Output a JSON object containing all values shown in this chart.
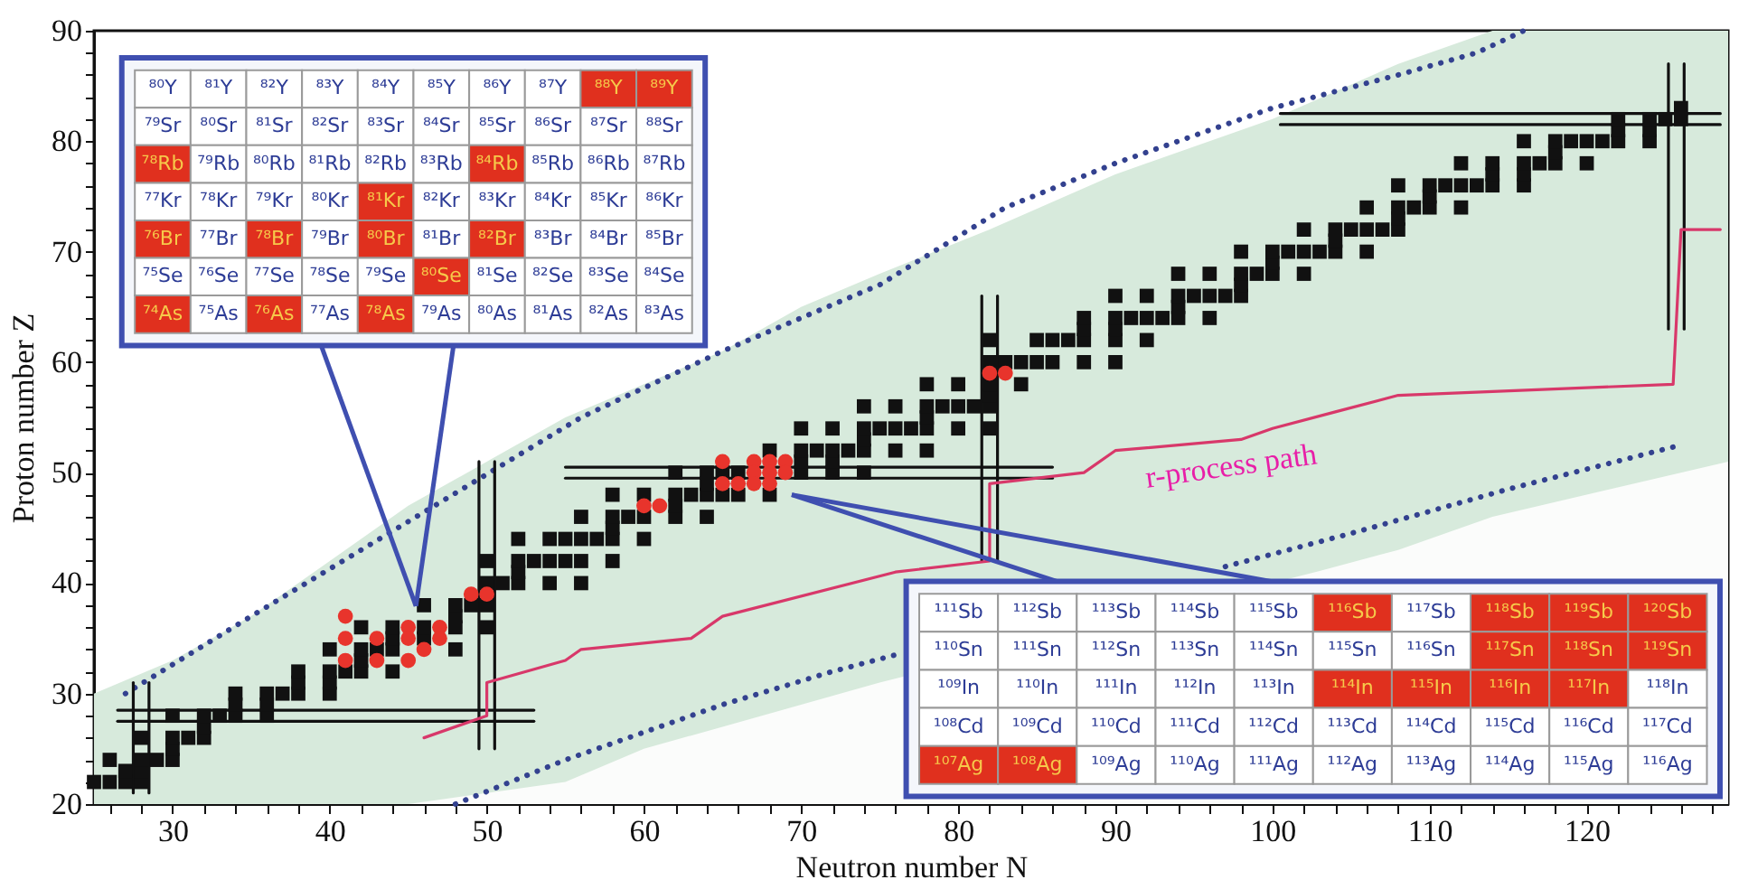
{
  "chart_data": [
    {
      "type": "scatter",
      "xlabel": "Neutron number N",
      "ylabel": "Proton number Z",
      "xlim": [
        25,
        129
      ],
      "ylim": [
        20,
        90
      ],
      "grid": false,
      "xticks": [
        {
          "value": 26,
          "label": null
        },
        {
          "value": 28,
          "label": null
        },
        30,
        {
          "value": 32,
          "label": null
        },
        {
          "value": 34,
          "label": null
        },
        {
          "value": 36,
          "label": null
        },
        {
          "value": 38,
          "label": null
        },
        40,
        {
          "value": 42,
          "label": null
        },
        {
          "value": 44,
          "label": null
        },
        {
          "value": 46,
          "label": null
        },
        {
          "value": 48,
          "label": null
        },
        50,
        {
          "value": 52,
          "label": null
        },
        {
          "value": 54,
          "label": null
        },
        {
          "value": 56,
          "label": null
        },
        {
          "value": 58,
          "label": null
        },
        60,
        {
          "value": 62,
          "label": null
        },
        {
          "value": 64,
          "label": null
        },
        {
          "value": 66,
          "label": null
        },
        {
          "value": 68,
          "label": null
        },
        70,
        {
          "value": 72,
          "label": null
        },
        {
          "value": 74,
          "label": null
        },
        {
          "value": 76,
          "label": null
        },
        {
          "value": 78,
          "label": null
        },
        80,
        {
          "value": 82,
          "label": null
        },
        {
          "value": 84,
          "label": null
        },
        {
          "value": 86,
          "label": null
        },
        {
          "value": 88,
          "label": null
        },
        90,
        {
          "value": 92,
          "label": null
        },
        {
          "value": 94,
          "label": null
        },
        {
          "value": 96,
          "label": null
        },
        {
          "value": 98,
          "label": null
        },
        100,
        {
          "value": 102,
          "label": null
        },
        {
          "value": 104,
          "label": null
        },
        {
          "value": 106,
          "label": null
        },
        {
          "value": 108,
          "label": null
        },
        110,
        {
          "value": 112,
          "label": null
        },
        {
          "value": 114,
          "label": null
        },
        {
          "value": 116,
          "label": null
        },
        {
          "value": 118,
          "label": null
        },
        120,
        {
          "value": 122,
          "label": null
        },
        {
          "value": 124,
          "label": null
        },
        {
          "value": 126,
          "label": null
        },
        {
          "value": 128,
          "label": null
        }
      ],
      "yticks": [
        20,
        {
          "value": 22,
          "label": null
        },
        {
          "value": 24,
          "label": null
        },
        {
          "value": 26,
          "label": null
        },
        {
          "value": 28,
          "label": null
        },
        30,
        {
          "value": 32,
          "label": null
        },
        {
          "value": 34,
          "label": null
        },
        {
          "value": 36,
          "label": null
        },
        {
          "value": 38,
          "label": null
        },
        40,
        {
          "value": 42,
          "label": null
        },
        {
          "value": 44,
          "label": null
        },
        {
          "value": 46,
          "label": null
        },
        {
          "value": 48,
          "label": null
        },
        50,
        {
          "value": 52,
          "label": null
        },
        {
          "value": 54,
          "label": null
        },
        {
          "value": 56,
          "label": null
        },
        {
          "value": 58,
          "label": null
        },
        60,
        {
          "value": 62,
          "label": null
        },
        {
          "value": 64,
          "label": null
        },
        {
          "value": 66,
          "label": null
        },
        {
          "value": 68,
          "label": null
        },
        70,
        {
          "value": 72,
          "label": null
        },
        {
          "value": 74,
          "label": null
        },
        {
          "value": 76,
          "label": null
        },
        {
          "value": 78,
          "label": null
        },
        80,
        {
          "value": 82,
          "label": null
        },
        {
          "value": 84,
          "label": null
        },
        {
          "value": 86,
          "label": null
        },
        {
          "value": 88,
          "label": null
        },
        90
      ],
      "series": [
        {
          "type": "area",
          "color": "#d7eadc",
          "x": [
            25,
            30,
            35,
            40,
            45,
            50,
            55,
            60,
            65,
            70,
            75,
            82,
            90,
            100,
            108,
            114,
            129
          ],
          "values": [
            30,
            33,
            37,
            42,
            47,
            51,
            55,
            58,
            61,
            65,
            68,
            72,
            77,
            82,
            87,
            90,
            90
          ]
        },
        {
          "type": "area",
          "color": "#fbfcfb",
          "x": [
            45,
            50,
            55,
            60,
            65,
            70,
            75,
            103,
            108,
            114,
            129
          ],
          "values": [
            20,
            21,
            22,
            25,
            27,
            29,
            31,
            41.1,
            43,
            46,
            51
          ]
        },
        {
          "type": "line",
          "line_style": "dotted",
          "color": "#33418f",
          "x": [
            27,
            35,
            42,
            49,
            56,
            65,
            75,
            83,
            90,
            100,
            108,
            113,
            116
          ],
          "values": [
            30,
            37,
            43,
            49,
            55,
            61,
            67,
            74,
            78,
            83,
            86,
            88,
            90
          ]
        },
        {
          "type": "line",
          "line_style": "dotted",
          "color": "#33418f",
          "x": [
            48,
            55,
            65,
            72,
            76
          ],
          "values": [
            20,
            24,
            29,
            32,
            33.5
          ]
        },
        {
          "type": "line",
          "line_style": "dotted",
          "color": "#33418f",
          "x": [
            97,
            105,
            115,
            126
          ],
          "values": [
            41.5,
            44.5,
            48.5,
            52.5
          ]
        },
        {
          "type": "line",
          "color": "#111111",
          "x": [
            27.5,
            27.5
          ],
          "values": [
            21,
            31
          ]
        },
        {
          "type": "line",
          "color": "#111111",
          "x": [
            28.5,
            28.5
          ],
          "values": [
            21,
            31
          ]
        },
        {
          "type": "line",
          "color": "#111111",
          "x": [
            26.5,
            53
          ],
          "values": [
            27.5,
            27.5
          ]
        },
        {
          "type": "line",
          "color": "#111111",
          "x": [
            26.5,
            53
          ],
          "values": [
            28.5,
            28.5
          ]
        },
        {
          "type": "line",
          "color": "#111111",
          "x": [
            49.5,
            49.5
          ],
          "values": [
            25,
            51
          ]
        },
        {
          "type": "line",
          "color": "#111111",
          "x": [
            50.5,
            50.5
          ],
          "values": [
            25,
            51
          ]
        },
        {
          "type": "line",
          "color": "#111111",
          "x": [
            55,
            86
          ],
          "values": [
            49.5,
            49.5
          ]
        },
        {
          "type": "line",
          "color": "#111111",
          "x": [
            55,
            86
          ],
          "values": [
            50.5,
            50.5
          ]
        },
        {
          "type": "line",
          "color": "#111111",
          "x": [
            81.5,
            81.5
          ],
          "values": [
            42,
            66
          ]
        },
        {
          "type": "line",
          "color": "#111111",
          "x": [
            82.5,
            82.5
          ],
          "values": [
            42,
            66
          ]
        },
        {
          "type": "line",
          "color": "#111111",
          "x": [
            100.5,
            128.5
          ],
          "values": [
            81.5,
            81.5
          ]
        },
        {
          "type": "line",
          "color": "#111111",
          "x": [
            100.5,
            128.5
          ],
          "values": [
            82.5,
            82.5
          ]
        },
        {
          "type": "line",
          "color": "#111111",
          "x": [
            125.2,
            125.2
          ],
          "values": [
            63,
            87
          ]
        },
        {
          "type": "line",
          "color": "#111111",
          "x": [
            126.2,
            126.2
          ],
          "values": [
            63,
            87
          ]
        },
        {
          "type": "line",
          "color": "#d8386a",
          "x": [
            46,
            50,
            50,
            55,
            56,
            63,
            65,
            76,
            82,
            82,
            88,
            90,
            98,
            100,
            104,
            108,
            125.5,
            126,
            128.5
          ],
          "values": [
            26,
            28,
            31,
            33,
            34,
            35,
            37,
            41,
            42,
            49,
            50,
            52,
            53,
            54,
            55.5,
            57,
            58,
            72,
            72
          ]
        },
        {
          "type": "scatter",
          "marker": "square",
          "color": "#111111",
          "x": [
            25,
            26,
            27,
            28,
            27,
            28,
            26,
            28,
            29,
            30,
            30,
            28,
            30,
            31,
            32,
            32,
            30,
            32,
            33,
            34,
            36,
            34,
            36,
            34,
            36,
            37,
            38,
            40,
            38,
            40,
            38,
            40,
            41,
            42,
            44,
            42,
            40,
            42,
            43,
            44,
            48,
            44,
            46,
            42,
            44,
            46,
            48,
            50,
            48,
            46,
            48,
            49,
            50,
            50,
            51,
            52,
            54,
            56,
            52,
            50,
            52,
            53,
            54,
            55,
            56,
            58,
            52,
            54,
            55,
            56,
            57,
            58,
            60,
            58,
            56,
            58,
            59,
            60,
            62,
            64,
            62,
            58,
            60,
            62,
            63,
            64,
            65,
            66,
            68,
            64,
            62,
            64,
            65,
            66,
            70,
            72,
            74,
            70,
            72,
            68,
            70,
            71,
            72,
            73,
            74,
            76,
            78,
            74,
            70,
            72,
            74,
            75,
            76,
            77,
            78,
            80,
            82,
            78,
            74,
            76,
            78,
            79,
            80,
            81,
            82,
            82,
            78,
            80,
            82,
            84,
            82,
            83,
            84,
            85,
            86,
            88,
            90,
            82,
            85,
            86,
            87,
            88,
            90,
            92,
            88,
            90,
            88,
            90,
            91,
            92,
            93,
            94,
            96,
            94,
            90,
            92,
            94,
            95,
            96,
            97,
            98,
            98,
            94,
            96,
            98,
            99,
            100,
            102,
            100,
            98,
            100,
            101,
            102,
            103,
            104,
            106,
            104,
            102,
            104,
            105,
            106,
            107,
            108,
            108,
            106,
            108,
            109,
            110,
            112,
            110,
            108,
            110,
            111,
            112,
            113,
            114,
            116,
            114,
            116,
            112,
            114,
            116,
            117,
            118,
            120,
            118,
            116,
            118,
            119,
            120,
            121,
            122,
            124,
            122,
            124,
            122,
            124,
            125,
            126,
            126
          ],
          "values": [
            22,
            22,
            22,
            22,
            23,
            23,
            24,
            24,
            24,
            24,
            25,
            26,
            26,
            26,
            26,
            27,
            28,
            28,
            28,
            28,
            28,
            29,
            29,
            30,
            30,
            30,
            30,
            30,
            31,
            31,
            32,
            32,
            32,
            32,
            32,
            33,
            34,
            34,
            34,
            34,
            34,
            35,
            35,
            36,
            36,
            36,
            36,
            36,
            37,
            38,
            38,
            38,
            38,
            40,
            40,
            40,
            40,
            40,
            41,
            42,
            42,
            42,
            42,
            42,
            42,
            42,
            44,
            44,
            44,
            44,
            44,
            44,
            44,
            45,
            46,
            46,
            46,
            46,
            46,
            46,
            47,
            48,
            48,
            48,
            48,
            48,
            48,
            48,
            48,
            49,
            50,
            50,
            50,
            50,
            50,
            50,
            50,
            51,
            51,
            52,
            52,
            52,
            52,
            52,
            52,
            52,
            52,
            53,
            54,
            54,
            54,
            54,
            54,
            54,
            54,
            54,
            54,
            55,
            56,
            56,
            56,
            56,
            56,
            56,
            56,
            57,
            58,
            58,
            58,
            58,
            60,
            60,
            60,
            60,
            60,
            60,
            60,
            62,
            62,
            62,
            62,
            62,
            62,
            62,
            63,
            63,
            64,
            64,
            64,
            64,
            64,
            64,
            64,
            65,
            66,
            66,
            66,
            66,
            66,
            66,
            66,
            67,
            68,
            68,
            68,
            68,
            68,
            68,
            69,
            70,
            70,
            70,
            70,
            70,
            70,
            70,
            71,
            72,
            72,
            72,
            72,
            72,
            72,
            73,
            74,
            74,
            74,
            74,
            74,
            75,
            76,
            76,
            76,
            76,
            76,
            76,
            76,
            77,
            77,
            78,
            78,
            78,
            78,
            78,
            78,
            79,
            80,
            80,
            80,
            80,
            80,
            80,
            80,
            81,
            81,
            82,
            82,
            82,
            82,
            83
          ]
        },
        {
          "type": "scatter",
          "marker": "circle",
          "color": "#e8342c",
          "x": [
            41,
            41,
            41,
            43,
            43,
            45,
            45,
            45,
            46,
            47,
            47,
            49,
            50,
            60,
            61,
            65,
            67,
            68,
            69,
            65,
            66,
            67,
            68,
            69,
            67,
            68,
            82,
            83
          ],
          "values": [
            37,
            35,
            33,
            35,
            33,
            36,
            35,
            33,
            34,
            36,
            35,
            39,
            39,
            47,
            47,
            51,
            51,
            51,
            51,
            49,
            49,
            50,
            50,
            50,
            49,
            49,
            59,
            59
          ]
        }
      ],
      "annotations": [
        "r-process path"
      ]
    },
    {
      "type": "other",
      "cell_labels": [
        [
          "⁸⁰Y",
          "⁸¹Y",
          "⁸²Y",
          "⁸³Y",
          "⁸⁴Y",
          "⁸⁵Y",
          "⁸⁶Y",
          "⁸⁷Y",
          "⁸⁸Y",
          "⁸⁹Y"
        ],
        [
          "⁷⁹Sr",
          "⁸⁰Sr",
          "⁸¹Sr",
          "⁸²Sr",
          "⁸³Sr",
          "⁸⁴Sr",
          "⁸⁵Sr",
          "⁸⁶Sr",
          "⁸⁷Sr",
          "⁸⁸Sr"
        ],
        [
          "⁷⁸Rb",
          "⁷⁹Rb",
          "⁸⁰Rb",
          "⁸¹Rb",
          "⁸²Rb",
          "⁸³Rb",
          "⁸⁴Rb",
          "⁸⁵Rb",
          "⁸⁶Rb",
          "⁸⁷Rb"
        ],
        [
          "⁷⁷Kr",
          "⁷⁸Kr",
          "⁷⁹Kr",
          "⁸⁰Kr",
          "⁸¹Kr",
          "⁸²Kr",
          "⁸³Kr",
          "⁸⁴Kr",
          "⁸⁵Kr",
          "⁸⁶Kr"
        ],
        [
          "⁷⁶Br",
          "⁷⁷Br",
          "⁷⁸Br",
          "⁷⁹Br",
          "⁸⁰Br",
          "⁸¹Br",
          "⁸²Br",
          "⁸³Br",
          "⁸⁴Br",
          "⁸⁵Br"
        ],
        [
          "⁷⁵Se",
          "⁷⁶Se",
          "⁷⁷Se",
          "⁷⁸Se",
          "⁷⁹Se",
          "⁸⁰Se",
          "⁸¹Se",
          "⁸²Se",
          "⁸³Se",
          "⁸⁴Se"
        ],
        [
          "⁷⁴As",
          "⁷⁵As",
          "⁷⁶As",
          "⁷⁷As",
          "⁷⁸As",
          "⁷⁹As",
          "⁸⁰As",
          "⁸¹As",
          "⁸²As",
          "⁸³As"
        ]
      ],
      "colors": [
        [
          "#ffffff",
          "#ffffff",
          "#ffffff",
          "#ffffff",
          "#ffffff",
          "#ffffff",
          "#ffffff",
          "#ffffff",
          "#e0301e",
          "#e0301e"
        ],
        [
          "#ffffff",
          "#ffffff",
          "#ffffff",
          "#ffffff",
          "#ffffff",
          "#ffffff",
          "#ffffff",
          "#ffffff",
          "#ffffff",
          "#ffffff"
        ],
        [
          "#e0301e",
          "#ffffff",
          "#ffffff",
          "#ffffff",
          "#ffffff",
          "#ffffff",
          "#e0301e",
          "#ffffff",
          "#ffffff",
          "#ffffff"
        ],
        [
          "#ffffff",
          "#ffffff",
          "#ffffff",
          "#ffffff",
          "#e0301e",
          "#ffffff",
          "#ffffff",
          "#ffffff",
          "#ffffff",
          "#ffffff"
        ],
        [
          "#e0301e",
          "#ffffff",
          "#e0301e",
          "#ffffff",
          "#e0301e",
          "#ffffff",
          "#e0301e",
          "#ffffff",
          "#ffffff",
          "#ffffff"
        ],
        [
          "#ffffff",
          "#ffffff",
          "#ffffff",
          "#ffffff",
          "#ffffff",
          "#e0301e",
          "#ffffff",
          "#ffffff",
          "#ffffff",
          "#ffffff"
        ],
        [
          "#e0301e",
          "#ffffff",
          "#e0301e",
          "#ffffff",
          "#e0301e",
          "#ffffff",
          "#ffffff",
          "#ffffff",
          "#ffffff",
          "#ffffff"
        ]
      ]
    },
    {
      "type": "other",
      "cell_labels": [
        [
          "¹¹¹Sb",
          "¹¹²Sb",
          "¹¹³Sb",
          "¹¹⁴Sb",
          "¹¹⁵Sb",
          "¹¹⁶Sb",
          "¹¹⁷Sb",
          "¹¹⁸Sb",
          "¹¹⁹Sb",
          "¹²⁰Sb"
        ],
        [
          "¹¹⁰Sn",
          "¹¹¹Sn",
          "¹¹²Sn",
          "¹¹³Sn",
          "¹¹⁴Sn",
          "¹¹⁵Sn",
          "¹¹⁶Sn",
          "¹¹⁷Sn",
          "¹¹⁸Sn",
          "¹¹⁹Sn"
        ],
        [
          "¹⁰⁹In",
          "¹¹⁰In",
          "¹¹¹In",
          "¹¹²In",
          "¹¹³In",
          "¹¹⁴In",
          "¹¹⁵In",
          "¹¹⁶In",
          "¹¹⁷In",
          "¹¹⁸In"
        ],
        [
          "¹⁰⁸Cd",
          "¹⁰⁹Cd",
          "¹¹⁰Cd",
          "¹¹¹Cd",
          "¹¹²Cd",
          "¹¹³Cd",
          "¹¹⁴Cd",
          "¹¹⁵Cd",
          "¹¹⁶Cd",
          "¹¹⁷Cd"
        ],
        [
          "¹⁰⁷Ag",
          "¹⁰⁸Ag",
          "¹⁰⁹Ag",
          "¹¹⁰Ag",
          "¹¹¹Ag",
          "¹¹²Ag",
          "¹¹³Ag",
          "¹¹⁴Ag",
          "¹¹⁵Ag",
          "¹¹⁶Ag"
        ]
      ],
      "colors": [
        [
          "#ffffff",
          "#ffffff",
          "#ffffff",
          "#ffffff",
          "#ffffff",
          "#e0301e",
          "#ffffff",
          "#e0301e",
          "#e0301e",
          "#e0301e"
        ],
        [
          "#ffffff",
          "#ffffff",
          "#ffffff",
          "#ffffff",
          "#ffffff",
          "#ffffff",
          "#ffffff",
          "#e0301e",
          "#e0301e",
          "#e0301e"
        ],
        [
          "#ffffff",
          "#ffffff",
          "#ffffff",
          "#ffffff",
          "#ffffff",
          "#e0301e",
          "#e0301e",
          "#e0301e",
          "#e0301e",
          "#ffffff"
        ],
        [
          "#ffffff",
          "#ffffff",
          "#ffffff",
          "#ffffff",
          "#ffffff",
          "#ffffff",
          "#ffffff",
          "#ffffff",
          "#ffffff",
          "#ffffff"
        ],
        [
          "#e0301e",
          "#e0301e",
          "#ffffff",
          "#ffffff",
          "#ffffff",
          "#ffffff",
          "#ffffff",
          "#ffffff",
          "#ffffff",
          "#ffffff"
        ]
      ]
    }
  ]
}
